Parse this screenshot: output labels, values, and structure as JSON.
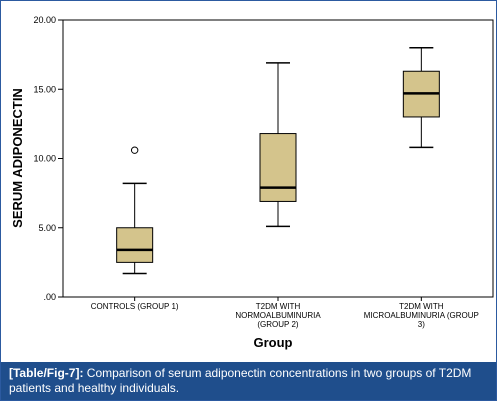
{
  "chart_data": {
    "type": "boxplot",
    "xlabel": "Group",
    "ylabel": "SERUM ADIPONECTIN",
    "ylim": [
      0,
      20
    ],
    "yticks": [
      ".00",
      "5.00",
      "10.00",
      "15.00",
      "20.00"
    ],
    "grid": false,
    "box_color": "#d4c48c",
    "categories": [
      [
        "CONTROLS (GROUP 1)"
      ],
      [
        "T2DM WITH",
        "NORMOALBUMINURIA",
        "(GROUP 2)"
      ],
      [
        "T2DM WITH",
        "MICROALBUMINURIA (GROUP",
        "3)"
      ]
    ],
    "boxes": [
      {
        "whisker_low": 1.7,
        "q1": 2.5,
        "median": 3.4,
        "q3": 5.0,
        "whisker_high": 8.2,
        "outliers": [
          10.6
        ]
      },
      {
        "whisker_low": 5.1,
        "q1": 6.9,
        "median": 7.9,
        "q3": 11.8,
        "whisker_high": 16.9,
        "outliers": []
      },
      {
        "whisker_low": 10.8,
        "q1": 13.0,
        "median": 14.7,
        "q3": 16.3,
        "whisker_high": 18.0,
        "outliers": []
      }
    ]
  },
  "caption": {
    "tag": "[Table/Fig-7]:",
    "text": "Comparison of serum adiponectin concentrations in two groups of T2DM patients and healthy individuals."
  }
}
